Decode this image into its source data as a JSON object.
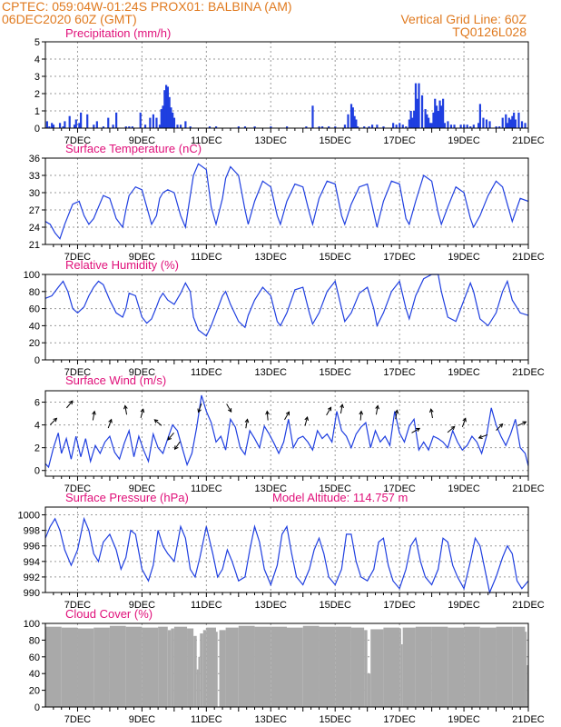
{
  "header": {
    "line1_left": "CPTEC:   059:04W-01:24S   PROX01: BALBINA (AM)",
    "line2_left": "06DEC2020 60Z (GMT)",
    "line2_right": "Vertical Grid Line: 60Z",
    "line3_right": "TQ0126L028"
  },
  "colors": {
    "header": "#e07a1f",
    "title": "#e0107a",
    "line": "#1f3fe0",
    "bar": "#1f3fe0",
    "cloud": "#a9a9a9",
    "grid": "#9a9a9a"
  },
  "x_tick_labels": [
    "7DEC",
    "9DEC",
    "11DEC",
    "13DEC",
    "15DEC",
    "17DEC",
    "19DEC",
    "21DEC"
  ],
  "chart_data": [
    {
      "id": "precip",
      "type": "bar",
      "title": "Precipitation (mm/h)",
      "ylim": [
        0,
        5
      ],
      "yticks": [
        0,
        1,
        2,
        3,
        4,
        5
      ],
      "x_range_days": [
        6.0,
        21.0
      ],
      "x": [
        6.05,
        6.12,
        6.2,
        6.25,
        6.45,
        6.55,
        6.6,
        6.75,
        6.9,
        6.95,
        7.05,
        7.1,
        7.3,
        7.5,
        7.6,
        7.8,
        7.95,
        8.1,
        8.2,
        8.5,
        8.6,
        8.7,
        8.95,
        9.1,
        9.25,
        9.35,
        9.45,
        9.55,
        9.6,
        9.65,
        9.7,
        9.75,
        9.8,
        9.85,
        9.9,
        9.95,
        10.0,
        10.1,
        10.2,
        10.35,
        10.5,
        11.1,
        11.3,
        12.0,
        12.2,
        12.5,
        13.0,
        13.5,
        14.1,
        14.3,
        14.5,
        14.6,
        14.8,
        15.0,
        15.3,
        15.4,
        15.5,
        15.55,
        15.6,
        15.65,
        15.7,
        15.9,
        16.05,
        16.15,
        16.3,
        16.5,
        16.8,
        16.9,
        17.0,
        17.1,
        17.2,
        17.3,
        17.35,
        17.4,
        17.45,
        17.5,
        17.55,
        17.6,
        17.7,
        17.8,
        17.85,
        17.9,
        17.95,
        18.0,
        18.05,
        18.1,
        18.15,
        18.2,
        18.25,
        18.3,
        18.35,
        18.4,
        18.5,
        18.6,
        18.7,
        18.9,
        19.0,
        19.1,
        19.2,
        19.3,
        19.45,
        19.5,
        19.6,
        19.7,
        19.8,
        20.0,
        20.1,
        20.2,
        20.3,
        20.35,
        20.4,
        20.45,
        20.5,
        20.55,
        20.6,
        20.7,
        20.8,
        20.9
      ],
      "values": [
        0.4,
        0.1,
        0.3,
        0.2,
        0.3,
        0.1,
        0.4,
        0.7,
        0.2,
        0.5,
        0.3,
        0.9,
        0.8,
        0.2,
        0.4,
        0.1,
        0.6,
        0.2,
        0.9,
        0.1,
        0.1,
        0.1,
        0.9,
        0.2,
        0.6,
        0.8,
        0.6,
        0.2,
        1.1,
        1.3,
        2.2,
        2.5,
        2.4,
        1.8,
        1.2,
        0.9,
        0.6,
        0.2,
        0.2,
        0.4,
        0.1,
        0.1,
        0.1,
        0.1,
        0.1,
        0.1,
        0.1,
        0.1,
        0.1,
        1.3,
        0.1,
        0.1,
        0.1,
        0.1,
        0.2,
        0.8,
        1.4,
        1.2,
        0.7,
        0.5,
        0.1,
        0.1,
        0.1,
        0.2,
        0.2,
        0.1,
        0.3,
        0.2,
        0.3,
        0.2,
        0.1,
        0.5,
        1.0,
        0.6,
        1.0,
        2.6,
        1.7,
        2.6,
        1.9,
        1.1,
        0.8,
        0.6,
        0.3,
        0.3,
        0.9,
        1.7,
        1.3,
        1.0,
        1.6,
        1.3,
        1.7,
        0.3,
        0.4,
        0.2,
        0.2,
        0.2,
        0.2,
        0.2,
        0.1,
        0.2,
        0.3,
        1.4,
        0.6,
        0.5,
        0.4,
        0.1,
        0.1,
        0.6,
        0.8,
        0.3,
        0.6,
        0.5,
        0.7,
        0.9,
        0.5,
        0.9,
        0.4,
        0.3
      ]
    },
    {
      "id": "temp",
      "type": "line",
      "title": "Surface Temperature (nC)",
      "ylim": [
        21,
        36
      ],
      "yticks": [
        21,
        24,
        27,
        30,
        33,
        36
      ],
      "x_range_days": [
        6.0,
        21.0
      ],
      "x": [
        6.0,
        6.15,
        6.3,
        6.45,
        6.6,
        6.85,
        7.05,
        7.2,
        7.35,
        7.5,
        7.65,
        7.8,
        8.0,
        8.2,
        8.4,
        8.5,
        8.6,
        8.8,
        9.0,
        9.15,
        9.3,
        9.45,
        9.55,
        9.65,
        9.8,
        10.0,
        10.2,
        10.35,
        10.5,
        10.6,
        10.75,
        11.0,
        11.15,
        11.3,
        11.5,
        11.6,
        11.75,
        12.0,
        12.2,
        12.3,
        12.5,
        12.75,
        13.0,
        13.2,
        13.3,
        13.5,
        13.75,
        14.0,
        14.2,
        14.3,
        14.5,
        14.75,
        15.0,
        15.2,
        15.3,
        15.5,
        15.75,
        16.0,
        16.2,
        16.3,
        16.5,
        16.75,
        17.0,
        17.2,
        17.3,
        17.5,
        17.75,
        18.0,
        18.2,
        18.3,
        18.5,
        18.75,
        19.0,
        19.2,
        19.3,
        19.5,
        19.75,
        20.0,
        20.2,
        20.35,
        20.5,
        20.75,
        21.0
      ],
      "values": [
        25.0,
        24.5,
        23.0,
        22.0,
        24.5,
        28.0,
        28.5,
        26.0,
        24.5,
        25.5,
        27.5,
        29.5,
        29.0,
        25.5,
        24.0,
        27.0,
        29.5,
        31.0,
        30.5,
        27.5,
        24.5,
        26.0,
        29.0,
        30.0,
        30.5,
        30.0,
        26.0,
        24.0,
        29.5,
        33.0,
        35.0,
        34.0,
        27.5,
        24.5,
        29.0,
        32.5,
        34.5,
        33.0,
        27.0,
        24.5,
        28.5,
        32.0,
        31.0,
        26.0,
        24.5,
        28.5,
        31.5,
        31.0,
        26.5,
        24.5,
        29.0,
        32.0,
        31.5,
        26.0,
        24.5,
        28.0,
        31.0,
        31.5,
        26.5,
        24.0,
        28.5,
        32.0,
        31.5,
        25.5,
        24.5,
        28.5,
        33.0,
        32.0,
        26.5,
        24.5,
        27.5,
        31.0,
        30.0,
        25.5,
        24.0,
        26.0,
        29.5,
        32.0,
        31.0,
        28.0,
        25.0,
        29.0,
        28.5
      ]
    },
    {
      "id": "rh",
      "type": "line",
      "title": "Relative Humidity (%)",
      "ylim": [
        0,
        100
      ],
      "yticks": [
        0,
        20,
        40,
        60,
        80,
        100
      ],
      "x_range_days": [
        6.0,
        21.0
      ],
      "x": [
        6.0,
        6.2,
        6.4,
        6.55,
        6.7,
        6.85,
        7.0,
        7.2,
        7.35,
        7.5,
        7.65,
        7.8,
        8.0,
        8.2,
        8.4,
        8.5,
        8.6,
        8.8,
        9.0,
        9.15,
        9.3,
        9.45,
        9.55,
        9.65,
        9.8,
        10.0,
        10.2,
        10.35,
        10.5,
        10.6,
        10.75,
        11.0,
        11.15,
        11.3,
        11.5,
        11.6,
        11.75,
        12.0,
        12.2,
        12.3,
        12.5,
        12.75,
        13.0,
        13.2,
        13.3,
        13.5,
        13.75,
        14.0,
        14.2,
        14.3,
        14.5,
        14.75,
        15.0,
        15.2,
        15.3,
        15.5,
        15.75,
        16.0,
        16.2,
        16.3,
        16.5,
        16.75,
        17.0,
        17.2,
        17.3,
        17.5,
        17.75,
        18.0,
        18.2,
        18.3,
        18.5,
        18.75,
        19.0,
        19.2,
        19.3,
        19.5,
        19.75,
        20.0,
        20.2,
        20.35,
        20.5,
        20.75,
        21.0
      ],
      "values": [
        72,
        75,
        85,
        92,
        80,
        60,
        55,
        62,
        75,
        85,
        92,
        88,
        70,
        55,
        50,
        60,
        78,
        75,
        50,
        43,
        48,
        62,
        72,
        78,
        70,
        65,
        78,
        90,
        80,
        50,
        35,
        28,
        40,
        55,
        75,
        80,
        65,
        45,
        38,
        52,
        70,
        85,
        75,
        45,
        40,
        55,
        82,
        85,
        55,
        42,
        55,
        80,
        92,
        60,
        45,
        55,
        78,
        85,
        60,
        40,
        55,
        80,
        92,
        60,
        48,
        75,
        95,
        100,
        100,
        80,
        50,
        45,
        70,
        90,
        80,
        48,
        40,
        55,
        80,
        92,
        70,
        55,
        52
      ]
    },
    {
      "id": "wind",
      "type": "line",
      "title": "Surface Wind (m/s)",
      "ylim": [
        -0.5,
        7
      ],
      "yticks": [
        0,
        2,
        4,
        6
      ],
      "x_range_days": [
        6.0,
        21.0
      ],
      "x": [
        6.0,
        6.1,
        6.25,
        6.4,
        6.5,
        6.65,
        6.8,
        6.95,
        7.1,
        7.25,
        7.4,
        7.55,
        7.7,
        7.85,
        8.0,
        8.15,
        8.3,
        8.45,
        8.6,
        8.75,
        8.9,
        9.05,
        9.2,
        9.35,
        9.5,
        9.65,
        9.8,
        9.95,
        10.1,
        10.25,
        10.4,
        10.55,
        10.7,
        10.85,
        11.0,
        11.15,
        11.3,
        11.45,
        11.6,
        11.75,
        11.9,
        12.05,
        12.2,
        12.35,
        12.5,
        12.65,
        12.8,
        12.95,
        13.1,
        13.25,
        13.4,
        13.55,
        13.7,
        13.85,
        14.0,
        14.15,
        14.3,
        14.45,
        14.6,
        14.75,
        14.9,
        15.05,
        15.2,
        15.35,
        15.5,
        15.65,
        15.8,
        15.95,
        16.1,
        16.25,
        16.4,
        16.55,
        16.7,
        16.85,
        17.0,
        17.15,
        17.3,
        17.45,
        17.6,
        17.75,
        17.9,
        18.05,
        18.2,
        18.35,
        18.5,
        18.65,
        18.8,
        18.95,
        19.1,
        19.25,
        19.4,
        19.55,
        19.7,
        19.85,
        20.0,
        20.15,
        20.3,
        20.45,
        20.6,
        20.75,
        20.9,
        21.0
      ],
      "values": [
        0.6,
        0.3,
        2.0,
        3.3,
        1.5,
        2.8,
        1.0,
        3.0,
        1.2,
        2.8,
        0.8,
        2.2,
        1.5,
        2.5,
        3.0,
        1.6,
        1.0,
        2.4,
        3.5,
        1.2,
        3.0,
        1.8,
        0.8,
        3.2,
        2.0,
        1.5,
        2.8,
        4.0,
        3.5,
        2.0,
        0.5,
        1.5,
        3.8,
        6.6,
        5.2,
        4.2,
        2.5,
        3.0,
        1.8,
        4.5,
        3.8,
        2.0,
        1.4,
        3.5,
        2.8,
        2.0,
        3.9,
        3.2,
        2.4,
        1.5,
        2.5,
        4.5,
        2.0,
        2.8,
        3.0,
        2.5,
        1.8,
        3.5,
        2.8,
        3.2,
        2.5,
        5.2,
        3.5,
        3.0,
        2.0,
        3.2,
        3.8,
        4.2,
        2.0,
        3.5,
        2.5,
        3.0,
        2.2,
        5.2,
        3.3,
        2.5,
        3.9,
        4.5,
        1.8,
        2.5,
        1.8,
        3.0,
        2.8,
        2.5,
        2.0,
        3.5,
        2.5,
        1.8,
        2.2,
        3.0,
        2.5,
        1.5,
        3.0,
        5.5,
        4.0,
        3.0,
        2.2,
        3.2,
        4.5,
        2.0,
        1.5,
        0.4
      ]
    },
    {
      "id": "pressure",
      "type": "line",
      "title": "Surface Pressure (hPa)",
      "annotation": "Model Altitude: 114.757 m",
      "ylim": [
        990,
        1001
      ],
      "yticks": [
        990,
        992,
        994,
        996,
        998,
        1000
      ],
      "x_range_days": [
        6.0,
        21.0
      ],
      "x": [
        6.0,
        6.15,
        6.3,
        6.45,
        6.6,
        6.8,
        7.0,
        7.2,
        7.35,
        7.5,
        7.65,
        7.8,
        8.0,
        8.2,
        8.35,
        8.5,
        8.65,
        8.8,
        9.0,
        9.2,
        9.35,
        9.5,
        9.65,
        9.8,
        10.0,
        10.2,
        10.35,
        10.5,
        10.65,
        10.8,
        11.0,
        11.2,
        11.35,
        11.5,
        11.65,
        11.8,
        12.0,
        12.2,
        12.35,
        12.5,
        12.65,
        12.8,
        13.0,
        13.2,
        13.35,
        13.5,
        13.65,
        13.8,
        14.0,
        14.2,
        14.35,
        14.5,
        14.65,
        14.8,
        15.0,
        15.2,
        15.35,
        15.5,
        15.65,
        15.8,
        16.0,
        16.2,
        16.35,
        16.5,
        16.65,
        16.8,
        17.0,
        17.2,
        17.35,
        17.5,
        17.65,
        17.8,
        18.0,
        18.2,
        18.35,
        18.5,
        18.65,
        18.8,
        19.0,
        19.2,
        19.35,
        19.5,
        19.65,
        19.8,
        20.0,
        20.2,
        20.35,
        20.5,
        20.65,
        20.8,
        21.0
      ],
      "values": [
        997.0,
        998.5,
        999.5,
        998.0,
        995.5,
        993.5,
        995.5,
        999.5,
        998.0,
        995.0,
        994.0,
        996.5,
        997.5,
        995.5,
        993.0,
        994.5,
        998.0,
        997.5,
        993.0,
        991.5,
        993.5,
        998.0,
        996.0,
        995.0,
        994.0,
        998.5,
        997.0,
        993.0,
        992.0,
        994.5,
        998.5,
        995.0,
        992.0,
        993.0,
        995.5,
        994.0,
        991.5,
        992.0,
        995.5,
        998.5,
        996.5,
        993.0,
        991.0,
        993.5,
        997.5,
        998.5,
        995.0,
        992.0,
        991.0,
        993.0,
        995.5,
        997.0,
        995.0,
        992.0,
        991.0,
        993.0,
        997.5,
        997.5,
        994.0,
        992.0,
        991.5,
        993.0,
        996.5,
        997.0,
        993.5,
        991.5,
        990.5,
        993.0,
        996.0,
        997.0,
        994.0,
        992.0,
        991.0,
        993.0,
        997.0,
        996.5,
        993.5,
        992.0,
        990.5,
        994.0,
        997.0,
        996.0,
        993.0,
        990.0,
        992.0,
        994.5,
        996.0,
        995.0,
        991.5,
        990.5,
        991.5
      ]
    },
    {
      "id": "cloud",
      "type": "area",
      "title": "Cloud Cover (%)",
      "ylim": [
        0,
        100
      ],
      "yticks": [
        0,
        20,
        40,
        60,
        80,
        100
      ],
      "x_range_days": [
        6.0,
        21.0
      ],
      "x": [
        6.0,
        6.5,
        7.0,
        7.5,
        8.0,
        8.5,
        9.0,
        9.5,
        9.8,
        9.9,
        10.0,
        10.4,
        10.6,
        10.7,
        10.75,
        10.8,
        10.9,
        11.0,
        11.3,
        11.35,
        11.4,
        11.6,
        12.0,
        12.5,
        13.0,
        13.5,
        14.0,
        14.5,
        15.0,
        15.5,
        15.9,
        16.0,
        16.1,
        16.5,
        17.0,
        17.05,
        17.1,
        17.5,
        18.0,
        18.5,
        19.0,
        19.5,
        20.0,
        20.5,
        20.9,
        20.95,
        21.0
      ],
      "values": [
        96,
        95,
        94,
        95,
        97,
        96,
        95,
        96,
        92,
        94,
        96,
        94,
        85,
        45,
        60,
        88,
        92,
        95,
        90,
        0,
        92,
        95,
        97,
        96,
        96,
        95,
        97,
        96,
        96,
        95,
        92,
        40,
        93,
        95,
        94,
        75,
        95,
        96,
        96,
        95,
        96,
        95,
        96,
        96,
        90,
        50,
        92
      ]
    }
  ]
}
